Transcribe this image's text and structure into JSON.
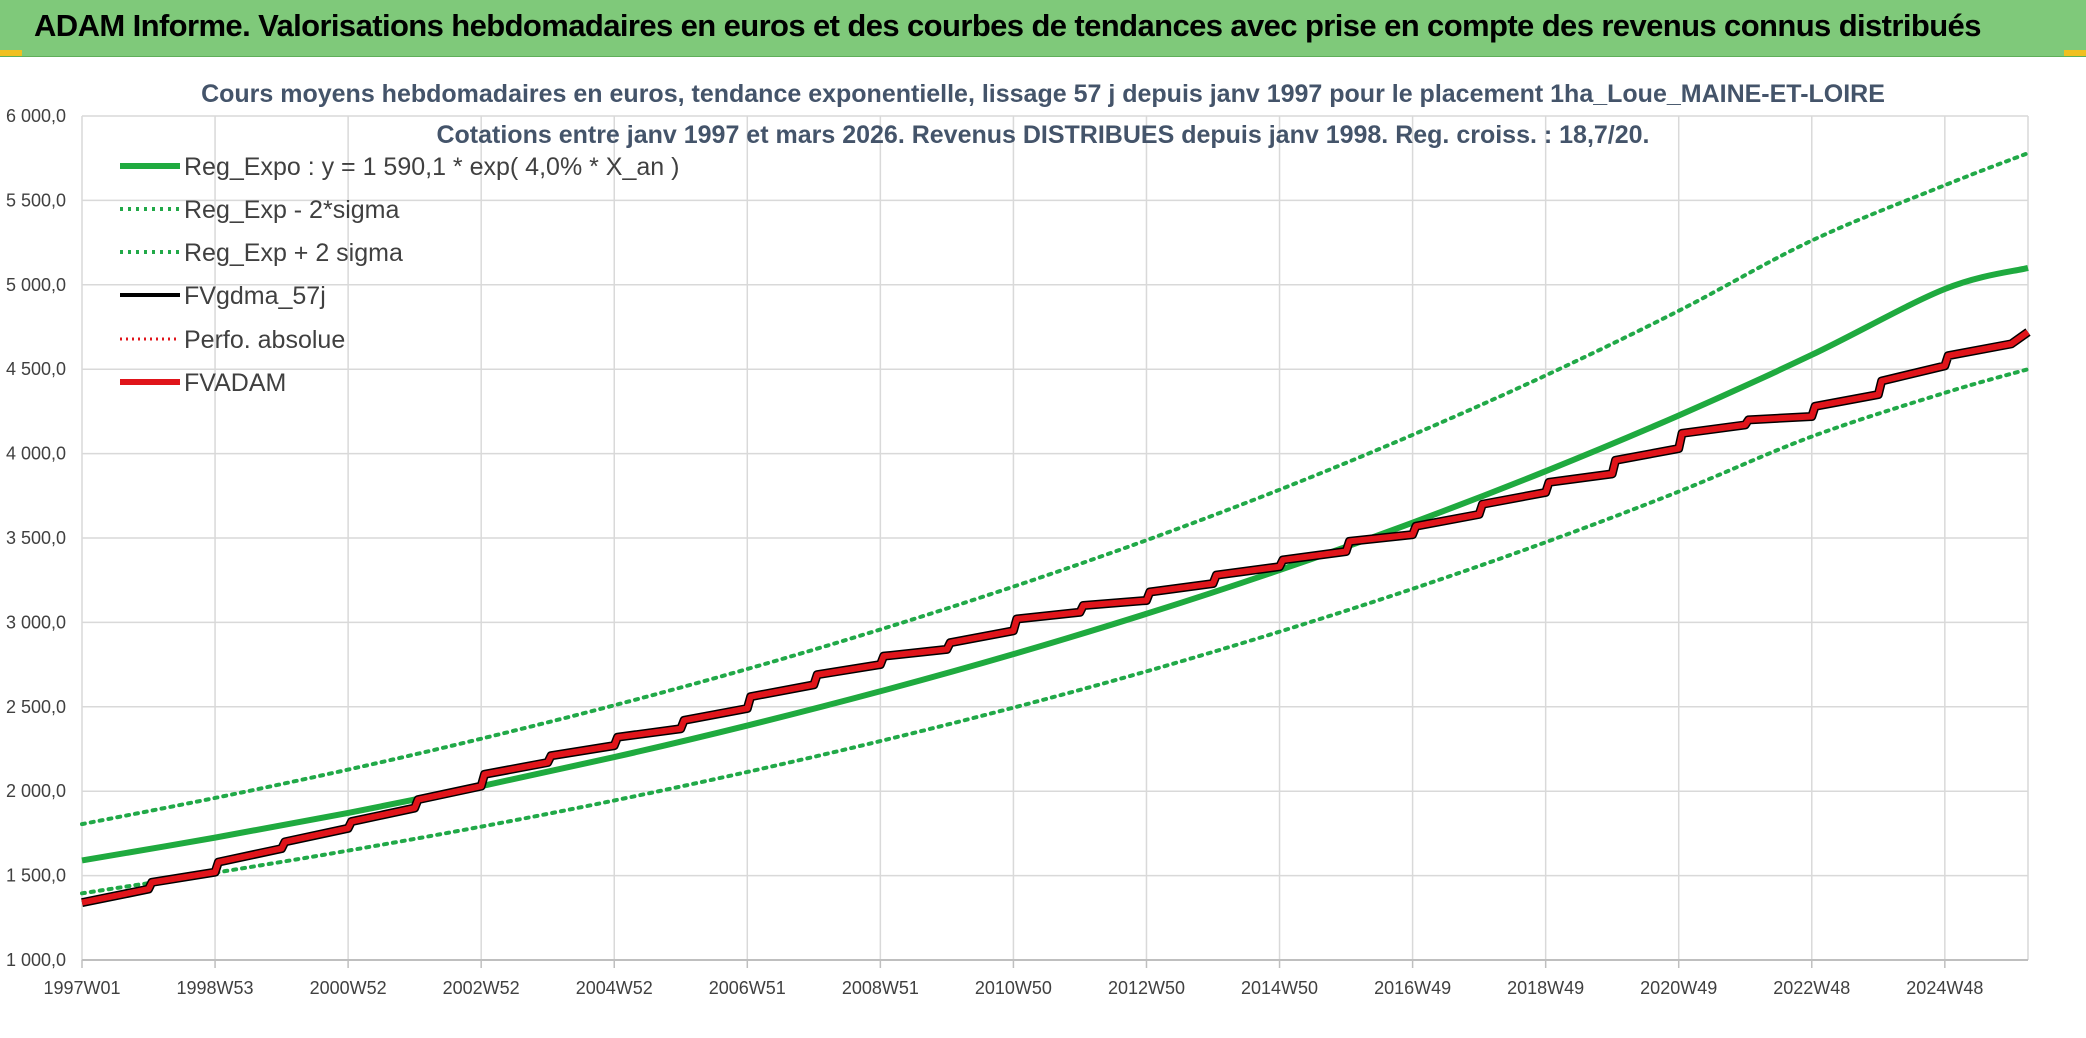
{
  "banner": {
    "title": "ADAM Informe. Valorisations hebdomadaires en euros et des courbes de tendances avec prise en compte des revenus connus distribués"
  },
  "colors": {
    "banner_bg": "#7fc97a",
    "trend_green": "#1faa3f",
    "band_green": "#21a948",
    "fvgdma_black": "#000000",
    "red": "#e0141a",
    "title_text": "#44546a",
    "grid": "#d9d9d9"
  },
  "chart_data": {
    "type": "line",
    "title": "Cours moyens hebdomadaires en euros, tendance exponentielle, lissage 57 j depuis janv 1997 pour le placement 1ha_Loue_MAINE-ET-LOIRE",
    "subtitle": "Cotations entre janv 1997 et mars 2026. Revenus DISTRIBUES depuis janv 1998. Reg. croiss. : 18,7/20.",
    "xlabel": "",
    "ylabel": "",
    "ylim": [
      1000,
      6000
    ],
    "xlim": [
      1997.0,
      2026.25
    ],
    "yticks": [
      "1 000,0",
      "1 500,0",
      "2 000,0",
      "2 500,0",
      "3 000,0",
      "3 500,0",
      "4 000,0",
      "4 500,0",
      "5 000,0",
      "5 500,0",
      "6 000,0"
    ],
    "ytick_values": [
      1000,
      1500,
      2000,
      2500,
      3000,
      3500,
      4000,
      4500,
      5000,
      5500,
      6000
    ],
    "xticks": [
      "1997W01",
      "1998W53",
      "2000W52",
      "2002W52",
      "2004W52",
      "2006W51",
      "2008W51",
      "2010W50",
      "2012W50",
      "2014W50",
      "2016W49",
      "2018W49",
      "2020W49",
      "2022W48",
      "2024W48"
    ],
    "xtick_values": [
      1997.0,
      1999.0,
      2001.0,
      2003.0,
      2005.0,
      2007.0,
      2009.0,
      2011.0,
      2013.0,
      2015.0,
      2017.0,
      2019.0,
      2021.0,
      2023.0,
      2025.0
    ],
    "grid": true,
    "legend_position": "top-left",
    "legend": [
      {
        "label": "Reg_Expo : y = 1 590,1 * exp( 4,0% *  X_an )",
        "style": "solid-thick-green"
      },
      {
        "label": "Reg_Exp - 2*sigma",
        "style": "dotted-green"
      },
      {
        "label": "Reg_Exp + 2 sigma",
        "style": "dotted-green"
      },
      {
        "label": "FVgdma_57j",
        "style": "solid-black"
      },
      {
        "label": "Perfo. absolue",
        "style": "dotted-red"
      },
      {
        "label": "FVADAM",
        "style": "solid-thick-red"
      }
    ],
    "series": [
      {
        "name": "Reg_Expo : y = 1 590,1 * exp( 4,0% *  X_an )",
        "x": [
          1997,
          1999,
          2001,
          2003,
          2005,
          2007,
          2009,
          2011,
          2013,
          2015,
          2017,
          2019,
          2021,
          2023,
          2025,
          2026.25
        ],
        "values": [
          1590,
          1725,
          1871,
          2030,
          2202,
          2389,
          2592,
          2812,
          3051,
          3310,
          3591,
          3896,
          4226,
          4585,
          4975,
          5100
        ]
      },
      {
        "name": "Reg_Exp - 2*sigma",
        "x": [
          1997,
          1999,
          2001,
          2003,
          2005,
          2007,
          2009,
          2011,
          2013,
          2015,
          2017,
          2019,
          2021,
          2023,
          2025,
          2026.25
        ],
        "values": [
          1395,
          1517,
          1648,
          1790,
          1945,
          2114,
          2297,
          2495,
          2710,
          2945,
          3199,
          3475,
          3775,
          4101,
          4360,
          4500
        ]
      },
      {
        "name": "Reg_Exp + 2 sigma",
        "x": [
          1997,
          1999,
          2001,
          2003,
          2005,
          2007,
          2009,
          2011,
          2013,
          2015,
          2017,
          2019,
          2021,
          2023,
          2025,
          2026.25
        ],
        "values": [
          1805,
          1960,
          2128,
          2311,
          2509,
          2724,
          2958,
          3212,
          3487,
          3786,
          4111,
          4463,
          4846,
          5262,
          5590,
          5780
        ]
      },
      {
        "name": "FVADAM",
        "x": [
          1997.0,
          1998.0,
          1998.05,
          1999.0,
          1999.05,
          2000.0,
          2000.05,
          2001.0,
          2001.05,
          2002.0,
          2002.05,
          2003.0,
          2003.05,
          2004.0,
          2004.05,
          2005.0,
          2005.05,
          2006.0,
          2006.05,
          2007.0,
          2007.05,
          2008.0,
          2008.05,
          2009.0,
          2009.05,
          2010.0,
          2010.05,
          2011.0,
          2011.05,
          2012.0,
          2012.05,
          2013.0,
          2013.05,
          2014.0,
          2014.05,
          2015.0,
          2015.05,
          2016.0,
          2016.05,
          2017.0,
          2017.05,
          2018.0,
          2018.05,
          2019.0,
          2019.05,
          2020.0,
          2020.05,
          2021.0,
          2021.05,
          2022.0,
          2022.05,
          2023.0,
          2023.05,
          2024.0,
          2024.05,
          2025.0,
          2025.05,
          2026.0,
          2026.25
        ],
        "values": [
          1340,
          1420,
          1460,
          1520,
          1580,
          1660,
          1700,
          1780,
          1820,
          1900,
          1950,
          2030,
          2100,
          2170,
          2210,
          2270,
          2320,
          2370,
          2420,
          2490,
          2560,
          2630,
          2690,
          2750,
          2800,
          2840,
          2880,
          2950,
          3020,
          3060,
          3100,
          3130,
          3180,
          3230,
          3280,
          3330,
          3370,
          3420,
          3480,
          3520,
          3570,
          3640,
          3700,
          3770,
          3830,
          3880,
          3960,
          4030,
          4120,
          4170,
          4200,
          4220,
          4280,
          4350,
          4430,
          4520,
          4580,
          4650,
          4720
        ]
      }
    ]
  }
}
